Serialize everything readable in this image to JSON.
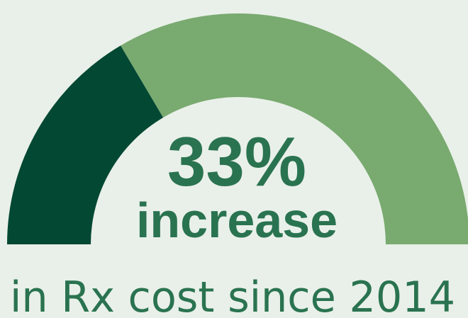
{
  "colors": {
    "background": "#e9f0e9",
    "filled": "#034833",
    "remaining": "#79aa70",
    "text": "#2a7350"
  },
  "chart_data": {
    "type": "gauge",
    "value_percent": 33,
    "range": [
      0,
      100
    ],
    "value_label": "33%",
    "subtitle": "increase",
    "caption": "in Rx cost since 2014"
  }
}
